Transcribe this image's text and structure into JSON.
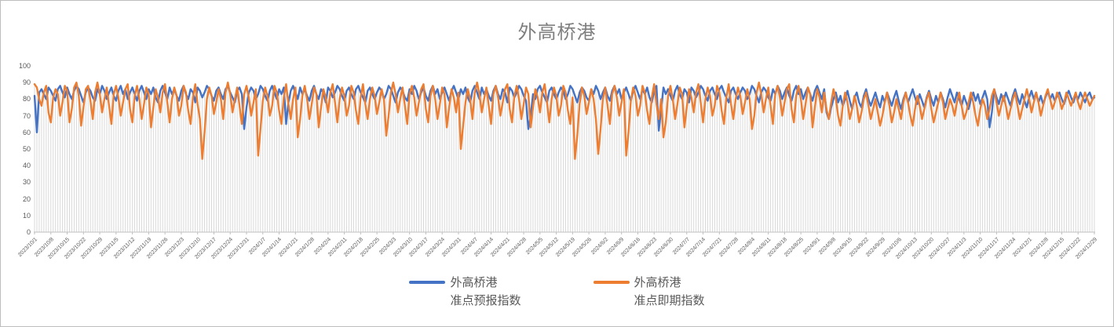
{
  "window": {
    "background": "#ffffff",
    "border_color": "#bdbdbd"
  },
  "chart_data": {
    "type": "line",
    "title": "外高桥港",
    "xlabel": "",
    "ylabel": "",
    "ylim": [
      0,
      100
    ],
    "y_ticks": [
      0,
      10,
      20,
      30,
      40,
      50,
      60,
      70,
      80,
      90,
      100
    ],
    "grid": "vertical drop-lines at every daily point, no horizontal gridlines",
    "legend_position": "bottom-center",
    "x_tick_every_n_points": 7,
    "x_tick_labels": [
      "2023/10/1",
      "2023/10/8",
      "2023/10/15",
      "2023/10/22",
      "2023/10/29",
      "2023/11/5",
      "2023/11/12",
      "2023/11/19",
      "2023/11/26",
      "2023/12/3",
      "2023/12/10",
      "2023/12/17",
      "2023/12/24",
      "2023/12/31",
      "2024/1/7",
      "2024/1/14",
      "2024/1/21",
      "2024/1/28",
      "2024/2/4",
      "2024/2/11",
      "2024/2/18",
      "2024/2/25",
      "2024/3/3",
      "2024/3/10",
      "2024/3/17",
      "2024/3/24",
      "2024/3/31",
      "2024/4/7",
      "2024/4/14",
      "2024/4/21",
      "2024/4/28",
      "2024/5/5",
      "2024/5/12",
      "2024/5/19",
      "2024/5/26",
      "2024/6/2",
      "2024/6/9",
      "2024/6/16",
      "2024/6/23",
      "2024/6/30",
      "2024/7/7",
      "2024/7/14",
      "2024/7/21",
      "2024/7/28",
      "2024/8/4",
      "2024/8/11",
      "2024/8/18",
      "2024/8/25",
      "2024/9/1",
      "2024/9/8",
      "2024/9/15",
      "2024/9/22",
      "2024/9/29",
      "2024/10/6",
      "2024/10/13",
      "2024/10/20",
      "2024/10/27",
      "2024/11/3",
      "2024/11/10",
      "2024/11/17",
      "2024/11/24",
      "2024/12/1",
      "2024/12/8",
      "2024/12/15",
      "2024/12/22",
      "2024/12/29"
    ],
    "colors": {
      "series1": "#4472C4",
      "series2": "#ED7D31",
      "dropline": "#D9D9D9",
      "axis": "#BFBFBF",
      "tick_label": "#595959",
      "title": "#7F7F7F"
    },
    "series": [
      {
        "name": "外高桥港 准点预报指数",
        "legend_line1": "外高桥港",
        "legend_line2": "准点预报指数",
        "color": "#4472C4",
        "values": [
          82,
          60,
          84,
          86,
          83,
          80,
          87,
          85,
          82,
          79,
          86,
          88,
          84,
          81,
          87,
          83,
          80,
          85,
          88,
          86,
          82,
          78,
          84,
          87,
          85,
          81,
          79,
          86,
          83,
          88,
          85,
          80,
          84,
          87,
          82,
          79,
          85,
          88,
          83,
          86,
          80,
          84,
          87,
          83,
          79,
          85,
          88,
          84,
          80,
          86,
          83,
          87,
          81,
          78,
          85,
          88,
          84,
          80,
          87,
          83,
          86,
          82,
          79,
          85,
          88,
          83,
          80,
          86,
          84,
          78,
          87,
          85,
          81,
          84,
          88,
          86,
          82,
          79,
          85,
          87,
          83,
          80,
          86,
          88,
          84,
          81,
          78,
          85,
          87,
          83,
          62,
          75,
          84,
          87,
          85,
          80,
          83,
          88,
          86,
          82,
          79,
          85,
          88,
          84,
          80,
          86,
          83,
          87,
          65,
          78,
          85,
          88,
          84,
          80,
          87,
          83,
          86,
          82,
          79,
          85,
          88,
          83,
          80,
          86,
          84,
          78,
          87,
          85,
          81,
          84,
          88,
          86,
          82,
          79,
          85,
          87,
          83,
          80,
          86,
          88,
          84,
          81,
          78,
          85,
          87,
          83,
          80,
          84,
          87,
          85,
          80,
          83,
          88,
          86,
          82,
          78,
          84,
          87,
          85,
          81,
          79,
          86,
          83,
          88,
          85,
          80,
          84,
          87,
          82,
          79,
          85,
          88,
          83,
          86,
          80,
          84,
          87,
          83,
          79,
          85,
          88,
          84,
          80,
          86,
          83,
          87,
          81,
          78,
          85,
          88,
          84,
          80,
          87,
          83,
          86,
          82,
          79,
          85,
          88,
          83,
          80,
          86,
          84,
          78,
          87,
          85,
          81,
          84,
          88,
          86,
          82,
          79,
          62,
          70,
          83,
          80,
          86,
          88,
          84,
          81,
          78,
          85,
          87,
          83,
          80,
          84,
          87,
          85,
          80,
          83,
          88,
          86,
          82,
          78,
          84,
          87,
          85,
          81,
          79,
          86,
          83,
          88,
          85,
          80,
          84,
          87,
          82,
          79,
          85,
          88,
          83,
          86,
          80,
          84,
          87,
          83,
          79,
          85,
          88,
          84,
          80,
          86,
          83,
          87,
          81,
          78,
          85,
          88,
          61,
          74,
          87,
          83,
          86,
          82,
          79,
          85,
          88,
          83,
          80,
          86,
          84,
          78,
          87,
          85,
          81,
          84,
          88,
          86,
          82,
          79,
          85,
          87,
          83,
          80,
          86,
          88,
          84,
          81,
          78,
          85,
          87,
          83,
          80,
          84,
          87,
          85,
          80,
          83,
          88,
          86,
          82,
          78,
          84,
          87,
          85,
          81,
          79,
          86,
          83,
          88,
          85,
          80,
          84,
          87,
          82,
          79,
          85,
          88,
          83,
          86,
          80,
          84,
          87,
          83,
          79,
          85,
          88,
          84,
          80,
          86,
          72,
          68,
          75,
          80,
          84,
          78,
          82,
          76,
          80,
          85,
          79,
          74,
          81,
          84,
          78,
          75,
          82,
          86,
          80,
          76,
          80,
          84,
          79,
          75,
          82,
          78,
          84,
          80,
          76,
          81,
          85,
          79,
          74,
          80,
          84,
          78,
          82,
          86,
          81,
          77,
          83,
          79,
          75,
          81,
          85,
          80,
          76,
          82,
          78,
          84,
          80,
          75,
          81,
          86,
          82,
          78,
          84,
          80,
          76,
          82,
          78,
          74,
          80,
          84,
          79,
          83,
          77,
          81,
          85,
          80,
          63,
          72,
          86,
          81,
          77,
          83,
          79,
          84,
          80,
          76,
          82,
          86,
          81,
          77,
          83,
          79,
          75,
          81,
          85,
          80,
          84,
          78,
          82,
          77,
          81,
          85,
          80,
          83,
          79,
          82,
          84,
          80,
          77,
          82,
          85,
          81,
          78,
          83,
          80,
          84,
          81,
          78,
          82,
          84,
          80,
          81
        ]
      },
      {
        "name": "外高桥港 准点即期指数",
        "legend_line1": "外高桥港",
        "legend_line2": "准点即期指数",
        "color": "#ED7D31",
        "values": [
          89,
          87,
          80,
          76,
          84,
          88,
          72,
          66,
          81,
          86,
          83,
          70,
          78,
          88,
          85,
          66,
          74,
          87,
          90,
          82,
          64,
          75,
          86,
          88,
          79,
          68,
          84,
          90,
          83,
          72,
          80,
          87,
          76,
          65,
          83,
          88,
          81,
          70,
          78,
          86,
          89,
          74,
          66,
          82,
          88,
          80,
          68,
          77,
          87,
          83,
          63,
          75,
          86,
          81,
          72,
          84,
          89,
          78,
          66,
          80,
          87,
          82,
          70,
          76,
          88,
          84,
          73,
          65,
          81,
          89,
          77,
          68,
          44,
          60,
          80,
          87,
          82,
          71,
          78,
          86,
          80,
          68,
          84,
          90,
          83,
          72,
          80,
          87,
          76,
          65,
          83,
          88,
          81,
          70,
          78,
          86,
          46,
          62,
          79,
          87,
          82,
          70,
          76,
          88,
          84,
          73,
          65,
          81,
          89,
          77,
          68,
          80,
          87,
          57,
          68,
          82,
          88,
          80,
          68,
          77,
          87,
          83,
          63,
          75,
          86,
          81,
          72,
          84,
          89,
          78,
          66,
          80,
          87,
          82,
          70,
          76,
          88,
          84,
          73,
          65,
          81,
          89,
          77,
          68,
          80,
          87,
          82,
          71,
          78,
          86,
          80,
          58,
          70,
          84,
          90,
          83,
          72,
          80,
          87,
          76,
          65,
          83,
          88,
          81,
          70,
          78,
          86,
          89,
          74,
          66,
          82,
          88,
          80,
          68,
          77,
          87,
          83,
          63,
          75,
          86,
          81,
          72,
          84,
          50,
          64,
          78,
          86,
          80,
          68,
          84,
          90,
          83,
          72,
          80,
          87,
          76,
          65,
          83,
          88,
          81,
          70,
          78,
          86,
          89,
          74,
          66,
          82,
          88,
          80,
          68,
          77,
          87,
          83,
          63,
          75,
          86,
          81,
          72,
          84,
          89,
          78,
          66,
          80,
          87,
          82,
          70,
          76,
          88,
          84,
          73,
          65,
          81,
          44,
          58,
          77,
          87,
          82,
          71,
          78,
          86,
          80,
          68,
          47,
          62,
          80,
          87,
          76,
          65,
          83,
          88,
          81,
          70,
          78,
          86,
          46,
          60,
          79,
          87,
          82,
          70,
          76,
          88,
          84,
          73,
          65,
          81,
          89,
          77,
          68,
          80,
          57,
          66,
          82,
          88,
          80,
          68,
          77,
          87,
          83,
          63,
          75,
          86,
          81,
          72,
          84,
          89,
          78,
          66,
          80,
          87,
          82,
          70,
          76,
          88,
          84,
          73,
          65,
          81,
          89,
          77,
          68,
          80,
          87,
          82,
          71,
          78,
          86,
          80,
          62,
          70,
          84,
          90,
          83,
          72,
          80,
          87,
          76,
          65,
          83,
          88,
          81,
          70,
          78,
          86,
          89,
          74,
          66,
          82,
          88,
          80,
          68,
          77,
          87,
          83,
          63,
          75,
          86,
          81,
          72,
          84,
          74,
          68,
          78,
          86,
          80,
          70,
          64,
          76,
          84,
          78,
          68,
          74,
          82,
          76,
          66,
          72,
          80,
          84,
          76,
          68,
          74,
          80,
          72,
          64,
          70,
          78,
          84,
          76,
          66,
          72,
          80,
          74,
          68,
          78,
          84,
          78,
          70,
          64,
          74,
          82,
          76,
          68,
          74,
          80,
          84,
          74,
          66,
          72,
          78,
          84,
          78,
          68,
          74,
          80,
          76,
          70,
          78,
          84,
          76,
          68,
          72,
          78,
          84,
          78,
          70,
          64,
          74,
          80,
          76,
          68,
          74,
          82,
          86,
          78,
          70,
          76,
          82,
          76,
          68,
          74,
          80,
          84,
          76,
          68,
          74,
          80,
          86,
          80,
          72,
          78,
          84,
          78,
          70,
          76,
          82,
          86,
          80,
          74,
          78,
          84,
          80,
          74,
          78,
          84,
          80,
          76,
          80,
          84,
          78,
          74,
          80,
          84,
          80,
          76,
          79,
          82
        ]
      }
    ]
  }
}
